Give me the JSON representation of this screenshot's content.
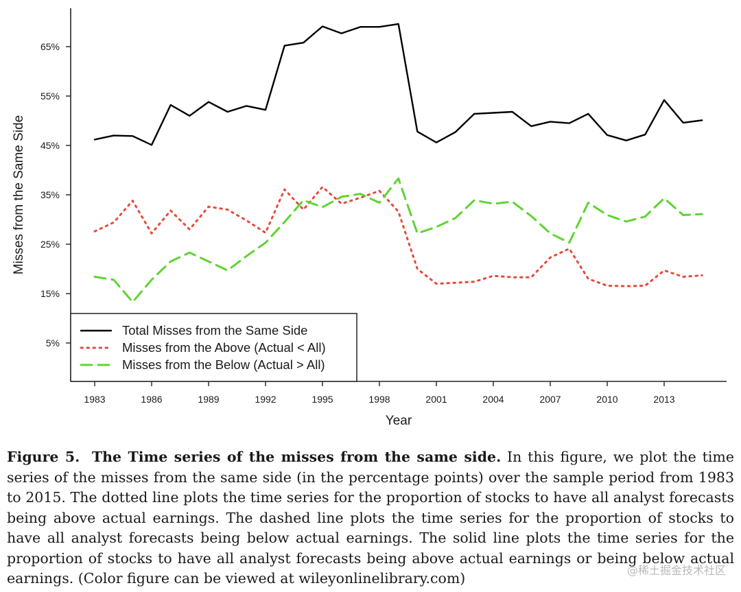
{
  "chart_data": {
    "type": "line",
    "xlabel": "Year",
    "ylabel": "Misses from the Same Side",
    "xlim": [
      1983,
      2015
    ],
    "ylim": [
      0,
      72
    ],
    "x_ticks": [
      1983,
      1986,
      1989,
      1992,
      1995,
      1998,
      2001,
      2004,
      2007,
      2010,
      2013
    ],
    "y_ticks": [
      5,
      15,
      25,
      35,
      45,
      55,
      65
    ],
    "y_tick_labels": [
      "5%",
      "15%",
      "25%",
      "35%",
      "45%",
      "55%",
      "65%"
    ],
    "x": [
      1983,
      1984,
      1985,
      1986,
      1987,
      1988,
      1989,
      1990,
      1991,
      1992,
      1993,
      1994,
      1995,
      1996,
      1997,
      1998,
      1999,
      2000,
      2001,
      2002,
      2003,
      2004,
      2005,
      2006,
      2007,
      2008,
      2009,
      2010,
      2011,
      2012,
      2013,
      2014,
      2015
    ],
    "series": [
      {
        "name": "Total Misses from the Same Side",
        "style": "solid",
        "color": "#000000",
        "values": [
          46.2,
          47.0,
          46.9,
          45.1,
          53.2,
          51.0,
          53.8,
          51.8,
          53.0,
          52.2,
          65.2,
          65.8,
          69.1,
          67.7,
          69.0,
          69.0,
          69.6,
          47.8,
          45.6,
          47.7,
          51.4,
          51.6,
          51.8,
          48.9,
          49.8,
          49.5,
          51.4,
          47.1,
          46.0,
          47.2,
          54.2,
          49.6,
          50.1
        ]
      },
      {
        "name": "Misses from the Above (Actual < All)",
        "style": "dotted",
        "color": "#e8483c",
        "values": [
          27.6,
          29.4,
          33.8,
          27.2,
          31.8,
          28.0,
          32.6,
          32.0,
          29.8,
          27.3,
          36.1,
          32.0,
          36.6,
          33.2,
          34.4,
          35.8,
          31.6,
          20.0,
          17.0,
          17.2,
          17.4,
          18.6,
          18.3,
          18.3,
          22.3,
          24.1,
          18.0,
          16.6,
          16.5,
          16.6,
          19.7,
          18.4,
          18.7
        ]
      },
      {
        "name": "Misses from the Below (Actual > All)",
        "style": "dashed",
        "color": "#5ed431",
        "values": [
          18.4,
          17.8,
          13.3,
          17.8,
          21.5,
          23.3,
          21.5,
          19.7,
          22.6,
          25.3,
          29.5,
          33.9,
          32.5,
          34.6,
          35.2,
          33.4,
          38.3,
          27.2,
          28.5,
          30.3,
          33.9,
          33.2,
          33.6,
          30.7,
          27.2,
          25.3,
          33.4,
          30.9,
          29.6,
          30.6,
          34.3,
          30.9,
          31.1
        ]
      }
    ],
    "legend_position": "bottom-left",
    "grid": false
  },
  "caption": {
    "label": "Figure 5.",
    "title": "The Time series of the misses from the same side.",
    "text": "In this figure, we plot the time series of the misses from the same side (in the percentage points) over the sample period from 1983 to 2015. The dotted line plots the time series for the proportion of stocks to have all analyst forecasts being above actual earnings. The dashed line plots the time series for the proportion of stocks to have all analyst forecasts being below actual earnings. The solid line plots the time series for the proportion of stocks to have all analyst forecasts being above actual earnings or being below actual earnings. (Color figure can be viewed at wileyonlinelibrary.com)"
  },
  "watermark": "@稀土掘金技术社区"
}
